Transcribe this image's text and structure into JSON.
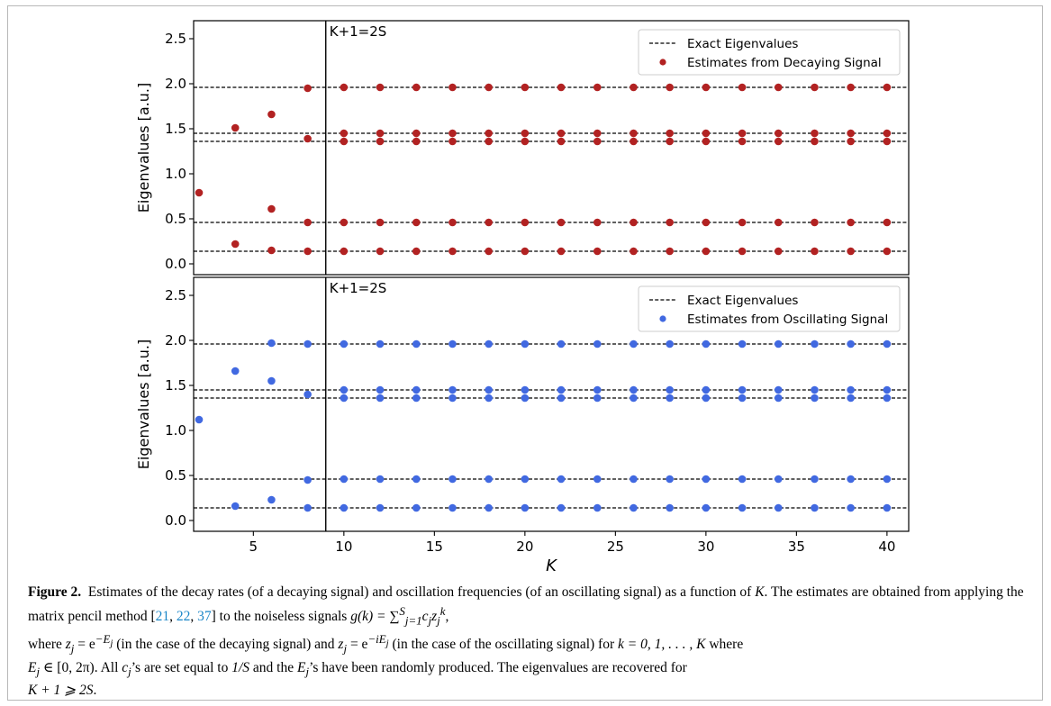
{
  "chart_data": [
    {
      "type": "scatter",
      "panel": "decaying",
      "title": "",
      "xlabel": "",
      "ylabel": "Eigenvalues [a.u.]",
      "xlim": [
        1.7,
        41.2
      ],
      "ylim": [
        -0.12,
        2.7
      ],
      "xticks": [],
      "yticks": [
        "0.0",
        "0.5",
        "1.0",
        "1.5",
        "2.0",
        "2.5"
      ],
      "ytick_values": [
        0.0,
        0.5,
        1.0,
        1.5,
        2.0,
        2.5
      ],
      "vline_x": 9,
      "vline_label": "K+1=2S",
      "exact_eigenvalues": [
        0.14,
        0.46,
        1.36,
        1.45,
        1.96
      ],
      "legend": {
        "placement": "top-right",
        "exact_label": "Exact Eigenvalues",
        "estimate_label": "Estimates from Decaying Signal"
      },
      "marker_color": "#b22222",
      "points": [
        {
          "x": 2,
          "y": 0.79
        },
        {
          "x": 4,
          "y": 0.22
        },
        {
          "x": 4,
          "y": 1.51
        },
        {
          "x": 6,
          "y": 0.15
        },
        {
          "x": 6,
          "y": 0.61
        },
        {
          "x": 6,
          "y": 1.66
        },
        {
          "x": 8,
          "y": 0.14
        },
        {
          "x": 8,
          "y": 0.46
        },
        {
          "x": 8,
          "y": 1.39
        },
        {
          "x": 8,
          "y": 1.95
        }
      ],
      "converged_from_x": 10,
      "converged_to_x": 40,
      "converged_step": 2
    },
    {
      "type": "scatter",
      "panel": "oscillating",
      "title": "",
      "xlabel": "K",
      "ylabel": "Eigenvalues [a.u.]",
      "xlim": [
        1.7,
        41.2
      ],
      "ylim": [
        -0.12,
        2.7
      ],
      "xticks": [
        "5",
        "10",
        "15",
        "20",
        "25",
        "30",
        "35",
        "40"
      ],
      "xtick_values": [
        5,
        10,
        15,
        20,
        25,
        30,
        35,
        40
      ],
      "yticks": [
        "0.0",
        "0.5",
        "1.0",
        "1.5",
        "2.0",
        "2.5"
      ],
      "ytick_values": [
        0.0,
        0.5,
        1.0,
        1.5,
        2.0,
        2.5
      ],
      "vline_x": 9,
      "vline_label": "K+1=2S",
      "exact_eigenvalues": [
        0.14,
        0.46,
        1.36,
        1.45,
        1.96
      ],
      "legend": {
        "placement": "top-right",
        "exact_label": "Exact Eigenvalues",
        "estimate_label": "Estimates from Oscillating Signal"
      },
      "marker_color": "#4169e1",
      "points": [
        {
          "x": 2,
          "y": 1.12
        },
        {
          "x": 4,
          "y": 0.16
        },
        {
          "x": 4,
          "y": 1.66
        },
        {
          "x": 6,
          "y": 0.23
        },
        {
          "x": 6,
          "y": 1.55
        },
        {
          "x": 6,
          "y": 1.97
        },
        {
          "x": 8,
          "y": 0.14
        },
        {
          "x": 8,
          "y": 0.45
        },
        {
          "x": 8,
          "y": 1.4
        },
        {
          "x": 8,
          "y": 1.96
        }
      ],
      "converged_from_x": 10,
      "converged_to_x": 40,
      "converged_step": 2
    }
  ],
  "caption": {
    "label": "Figure 2.",
    "t1": "Estimates of the decay rates (of a decaying signal) and oscillation frequencies (of an oscillating signal) as a function of",
    "t2": "K",
    "t3": ". The estimates are obtained from applying the matrix pencil method [",
    "ref1": "21",
    "ref2": "22",
    "ref3": "37",
    "t4": "] to the noiseless signals ",
    "eq1": "g(k) = ∑",
    "eq1_sup": "S",
    "eq1_sub": "j=1",
    "eq1_tail": "c",
    "eq1_tail_sub": "j",
    "eq1_z": "z",
    "eq1_z_sub": "j",
    "eq1_z_sup": "k",
    "t5": "where ",
    "eq2": "z",
    "eq2_sub": "j",
    "eq2_eq": " = e",
    "eq2_sup": "−E",
    "eq2_sup_sub": "j",
    "t6": " (in the case of the decaying signal) and ",
    "eq3": "z",
    "eq3_sub": "j",
    "eq3_eq": " = e",
    "eq3_sup": "−iE",
    "eq3_sup_sub": "j",
    "t7": " (in the case of the oscillating signal) for ",
    "eq4": "k = 0, 1, . . . , K",
    "t8": " where",
    "eq5": "E",
    "eq5_sub": "j",
    "eq5_tail": " ∈ [0, 2π)",
    "t9": ". All ",
    "eq6": "c",
    "eq6_sub": "j",
    "t10": "’s are set equal to ",
    "eq7": "1/S",
    "t11": " and the ",
    "eq8": "E",
    "eq8_sub": "j",
    "t12": "’s have been randomly produced. The eigenvalues are recovered for",
    "eq9": "K + 1 ⩾ 2S",
    "t13": "."
  }
}
